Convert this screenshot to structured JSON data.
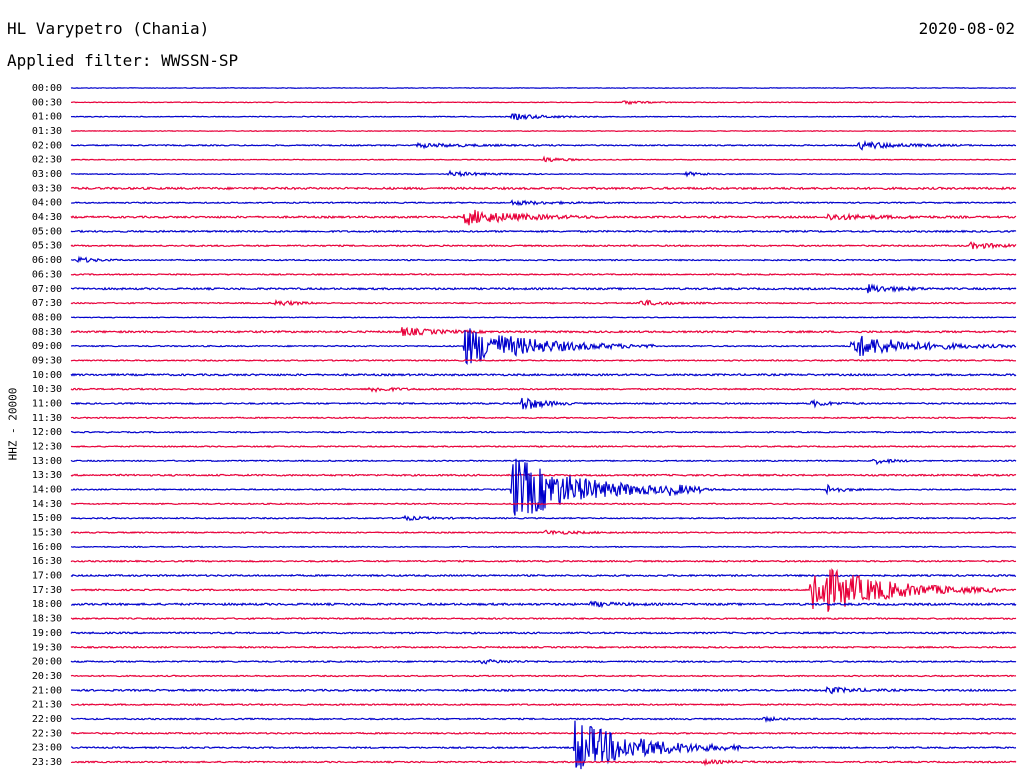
{
  "header": {
    "station": "HL Varypetro (Chania)",
    "date": "2020-08-02",
    "filter": "Applied filter: WWSSN-SP"
  },
  "colors": {
    "even": "#0000cc",
    "odd": "#e8003a"
  },
  "chart_data": {
    "type": "line",
    "title": "HL Varypetro (Chania)",
    "ylabel": "HHZ - 20000",
    "xlabel": "",
    "row_labels": [
      "00:00",
      "00:30",
      "01:00",
      "01:30",
      "02:00",
      "02:30",
      "03:00",
      "03:30",
      "04:00",
      "04:30",
      "05:00",
      "05:30",
      "06:00",
      "06:30",
      "07:00",
      "07:30",
      "08:00",
      "08:30",
      "09:00",
      "09:30",
      "10:00",
      "10:30",
      "11:00",
      "11:30",
      "12:00",
      "12:30",
      "13:00",
      "13:30",
      "14:00",
      "14:30",
      "15:00",
      "15:30",
      "16:00",
      "16:30",
      "17:00",
      "17:30",
      "18:00",
      "18:30",
      "19:00",
      "19:30",
      "20:00",
      "20:30",
      "21:00",
      "21:30",
      "22:00",
      "22:30",
      "23:00",
      "23:30"
    ],
    "row_minutes": 30,
    "grid": false,
    "noise": [
      0.3,
      0.35,
      0.4,
      0.35,
      0.6,
      0.4,
      0.4,
      1.0,
      0.6,
      0.9,
      0.8,
      0.7,
      0.6,
      0.6,
      0.9,
      0.6,
      0.4,
      0.9,
      0.6,
      0.6,
      0.9,
      0.7,
      0.7,
      0.6,
      0.6,
      0.6,
      0.6,
      0.8,
      0.6,
      0.6,
      0.6,
      0.6,
      0.5,
      0.7,
      0.8,
      0.7,
      1.0,
      0.7,
      0.8,
      0.7,
      0.7,
      0.6,
      0.9,
      0.7,
      0.7,
      0.7,
      0.7,
      0.7
    ],
    "events": [
      {
        "row": 1,
        "minute": 17.5,
        "amp": 2,
        "dur": 0.6
      },
      {
        "row": 2,
        "minute": 14.0,
        "amp": 3,
        "dur": 1.0
      },
      {
        "row": 4,
        "minute": 25.0,
        "amp": 4,
        "dur": 1.2
      },
      {
        "row": 4,
        "minute": 11.0,
        "amp": 2,
        "dur": 1.5
      },
      {
        "row": 5,
        "minute": 15.0,
        "amp": 2.5,
        "dur": 0.6
      },
      {
        "row": 6,
        "minute": 12.0,
        "amp": 2.5,
        "dur": 1.0
      },
      {
        "row": 6,
        "minute": 19.5,
        "amp": 2,
        "dur": 0.6
      },
      {
        "row": 8,
        "minute": 14.0,
        "amp": 2,
        "dur": 1.2
      },
      {
        "row": 9,
        "minute": 12.5,
        "amp": 8,
        "dur": 1.5
      },
      {
        "row": 9,
        "minute": 24.0,
        "amp": 3,
        "dur": 1.5
      },
      {
        "row": 11,
        "minute": 28.5,
        "amp": 3,
        "dur": 1.0
      },
      {
        "row": 12,
        "minute": 0.2,
        "amp": 3,
        "dur": 0.5
      },
      {
        "row": 14,
        "minute": 25.3,
        "amp": 4,
        "dur": 0.8
      },
      {
        "row": 15,
        "minute": 6.5,
        "amp": 3,
        "dur": 0.6
      },
      {
        "row": 15,
        "minute": 18.0,
        "amp": 3,
        "dur": 0.8
      },
      {
        "row": 17,
        "minute": 10.5,
        "amp": 4,
        "dur": 1.0
      },
      {
        "row": 18,
        "minute": 12.5,
        "amp": 20,
        "dur": 2.0
      },
      {
        "row": 18,
        "minute": 24.8,
        "amp": 12,
        "dur": 1.8
      },
      {
        "row": 21,
        "minute": 9.5,
        "amp": 3,
        "dur": 0.6
      },
      {
        "row": 22,
        "minute": 14.3,
        "amp": 8,
        "dur": 0.6
      },
      {
        "row": 22,
        "minute": 23.5,
        "amp": 3,
        "dur": 0.6
      },
      {
        "row": 26,
        "minute": 25.5,
        "amp": 3,
        "dur": 0.5
      },
      {
        "row": 28,
        "minute": 14.0,
        "amp": 34,
        "dur": 2.0
      },
      {
        "row": 28,
        "minute": 19.0,
        "amp": 3,
        "dur": 0.8
      },
      {
        "row": 28,
        "minute": 24.0,
        "amp": 5,
        "dur": 0.4
      },
      {
        "row": 30,
        "minute": 10.5,
        "amp": 2,
        "dur": 0.8
      },
      {
        "row": 31,
        "minute": 15.0,
        "amp": 2,
        "dur": 1.0
      },
      {
        "row": 35,
        "minute": 23.5,
        "amp": 28,
        "dur": 2.0
      },
      {
        "row": 36,
        "minute": 16.5,
        "amp": 2,
        "dur": 0.8
      },
      {
        "row": 40,
        "minute": 13.0,
        "amp": 2,
        "dur": 0.8
      },
      {
        "row": 42,
        "minute": 24.0,
        "amp": 3,
        "dur": 0.8
      },
      {
        "row": 44,
        "minute": 22.0,
        "amp": 2,
        "dur": 0.4
      },
      {
        "row": 46,
        "minute": 16.0,
        "amp": 28,
        "dur": 1.8
      },
      {
        "row": 47,
        "minute": 20.0,
        "amp": 2,
        "dur": 0.8
      }
    ]
  }
}
